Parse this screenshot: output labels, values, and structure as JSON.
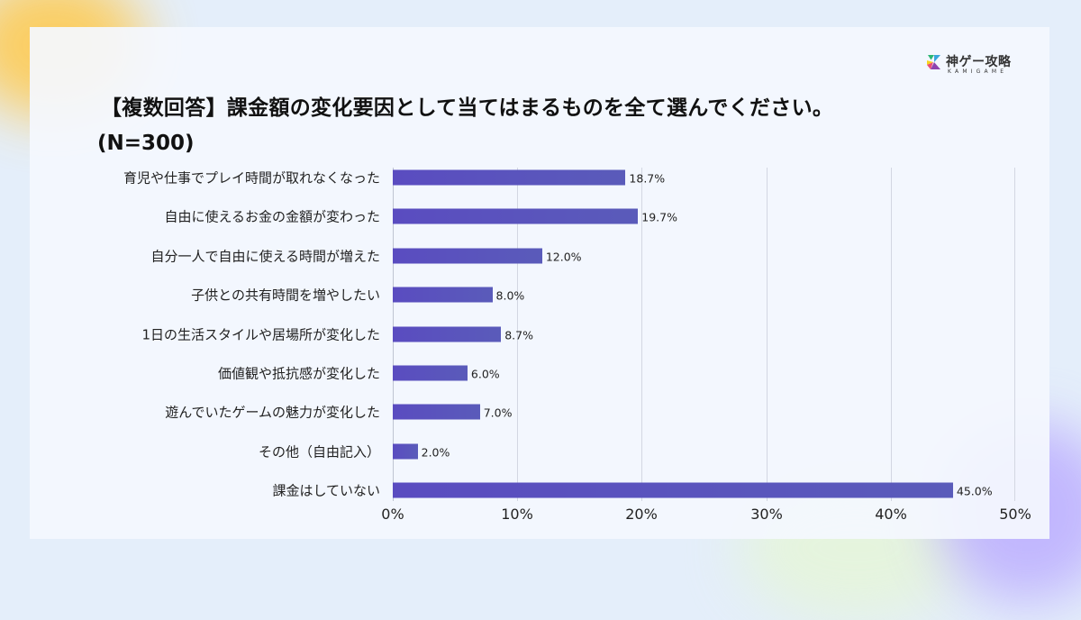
{
  "brand": {
    "name": "神ゲー攻略",
    "sub": "KAMIGAME",
    "colors": [
      "#2bb673",
      "#f7941d",
      "#e94e77",
      "#5a4cc0"
    ]
  },
  "header": {
    "title": "【複数回答】課金額の変化要因として当てはまるものを全て選んでください。",
    "subtitle": "(N=300)"
  },
  "chart_data": {
    "type": "bar",
    "orientation": "horizontal",
    "title": "【複数回答】課金額の変化要因として当てはまるものを全て選んでください。(N=300)",
    "xlabel": "",
    "ylabel": "",
    "xlim": [
      0,
      50
    ],
    "x_ticks": [
      "0%",
      "10%",
      "20%",
      "30%",
      "40%",
      "50%"
    ],
    "grid": true,
    "bar_color": "#5a50bd",
    "categories": [
      "育児や仕事でプレイ時間が取れなくなった",
      "自由に使えるお金の金額が変わった",
      "自分一人で自由に使える時間が増えた",
      "子供との共有時間を増やしたい",
      "1日の生活スタイルや居場所が変化した",
      "価値観や抵抗感が変化した",
      "遊んでいたゲームの魅力が変化した",
      "その他（自由記入）",
      "課金はしていない"
    ],
    "values": [
      18.7,
      19.7,
      12.0,
      8.0,
      8.7,
      6.0,
      7.0,
      2.0,
      45.0
    ],
    "value_labels": [
      "18.7%",
      "19.7%",
      "12.0%",
      "8.0%",
      "8.7%",
      "6.0%",
      "7.0%",
      "2.0%",
      "45.0%"
    ]
  }
}
